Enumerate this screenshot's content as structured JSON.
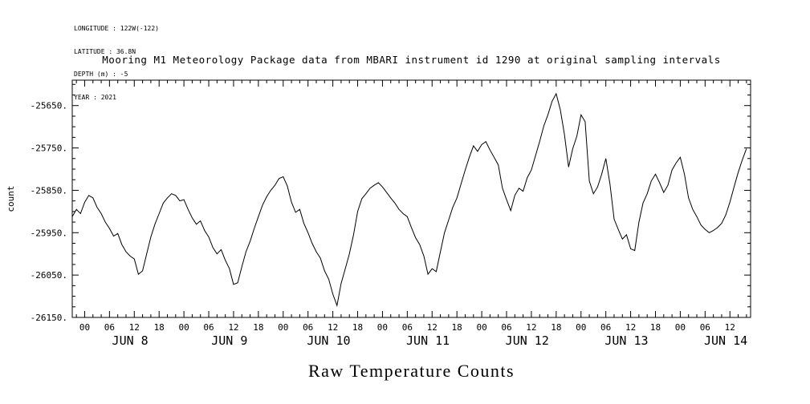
{
  "meta": {
    "lines": [
      "LONGITUDE : 122W(-122)",
      "LATITUDE : 36.8N",
      "DEPTH (m) : -5",
      "YEAR : 2021"
    ]
  },
  "title": "Mooring M1 Meteorology Package data from MBARI instrument id 1290 at original sampling intervals",
  "bottom_title": "Raw Temperature Counts",
  "chart_data": {
    "type": "line",
    "title": "Mooring M1 Meteorology Package data from MBARI instrument id 1290 at original sampling intervals",
    "caption": "Raw Temperature Counts",
    "xlabel": "",
    "ylabel": "count",
    "grid": false,
    "legend": "none",
    "line_color": "#000000",
    "ylim": [
      -26150,
      -25590
    ],
    "xlim_hours": [
      -3,
      161
    ],
    "x_major_tick_every_hours": 6,
    "x_minor_tick_every_hours": 2,
    "y_major_tick_every": 100,
    "y_minor_tick_every": 25,
    "x_major_tick_labels_cycle": [
      "00",
      "06",
      "12",
      "18"
    ],
    "y_ticks": [
      {
        "value": -26150,
        "label": "-26150."
      },
      {
        "value": -26050,
        "label": "-26050."
      },
      {
        "value": -25950,
        "label": "-25950."
      },
      {
        "value": -25850,
        "label": "-25850."
      },
      {
        "value": -25750,
        "label": "-25750."
      },
      {
        "value": -25650,
        "label": "-25650."
      }
    ],
    "day_labels": [
      {
        "label": "JUN 8",
        "hour": 11
      },
      {
        "label": "JUN 9",
        "hour": 35
      },
      {
        "label": "JUN 10",
        "hour": 59
      },
      {
        "label": "JUN 11",
        "hour": 83
      },
      {
        "label": "JUN 12",
        "hour": 107
      },
      {
        "label": "JUN 13",
        "hour": 131
      },
      {
        "label": "JUN 14",
        "hour": 155
      }
    ],
    "series": [
      {
        "name": "raw temperature counts",
        "x_hours": [
          -3,
          -2,
          -1,
          0,
          1,
          2,
          3,
          4,
          5,
          6,
          7,
          8,
          9,
          10,
          11,
          12,
          13,
          14,
          15,
          16,
          17,
          18,
          19,
          20,
          21,
          22,
          23,
          24,
          25,
          26,
          27,
          28,
          29,
          30,
          31,
          32,
          33,
          34,
          35,
          36,
          37,
          38,
          39,
          40,
          41,
          42,
          43,
          44,
          45,
          46,
          47,
          48,
          49,
          50,
          51,
          52,
          53,
          54,
          55,
          56,
          57,
          58,
          59,
          60,
          61,
          62,
          63,
          64,
          65,
          66,
          67,
          68,
          69,
          70,
          71,
          72,
          73,
          74,
          75,
          76,
          77,
          78,
          79,
          80,
          81,
          82,
          83,
          84,
          85,
          86,
          87,
          88,
          89,
          90,
          91,
          92,
          93,
          94,
          95,
          96,
          97,
          98,
          99,
          100,
          101,
          102,
          103,
          104,
          105,
          106,
          107,
          108,
          109,
          110,
          111,
          112,
          113,
          114,
          115,
          116,
          117,
          118,
          119,
          120,
          121,
          122,
          123,
          124,
          125,
          126,
          127,
          128,
          129,
          130,
          131,
          132,
          133,
          134,
          135,
          136,
          137,
          138,
          139,
          140,
          141,
          142,
          143,
          144,
          145,
          146,
          147,
          148,
          149,
          150,
          151,
          152,
          153,
          154,
          155,
          156,
          157,
          158,
          159,
          160
        ],
        "values": [
          -25912,
          -25895,
          -25905,
          -25878,
          -25862,
          -25868,
          -25890,
          -25905,
          -25925,
          -25940,
          -25958,
          -25952,
          -25978,
          -25995,
          -26005,
          -26012,
          -26048,
          -26040,
          -26000,
          -25960,
          -25930,
          -25905,
          -25880,
          -25868,
          -25858,
          -25862,
          -25875,
          -25872,
          -25895,
          -25915,
          -25930,
          -25922,
          -25945,
          -25960,
          -25985,
          -26000,
          -25990,
          -26015,
          -26035,
          -26072,
          -26068,
          -26030,
          -25995,
          -25970,
          -25940,
          -25912,
          -25885,
          -25865,
          -25850,
          -25838,
          -25822,
          -25818,
          -25840,
          -25878,
          -25902,
          -25895,
          -25928,
          -25950,
          -25975,
          -25995,
          -26010,
          -26040,
          -26060,
          -26095,
          -26122,
          -26070,
          -26035,
          -26000,
          -25955,
          -25900,
          -25870,
          -25858,
          -25845,
          -25838,
          -25832,
          -25842,
          -25855,
          -25868,
          -25880,
          -25895,
          -25905,
          -25912,
          -25938,
          -25962,
          -25978,
          -26005,
          -26048,
          -26035,
          -26042,
          -25995,
          -25950,
          -25920,
          -25890,
          -25868,
          -25835,
          -25802,
          -25772,
          -25745,
          -25758,
          -25742,
          -25735,
          -25755,
          -25772,
          -25790,
          -25845,
          -25872,
          -25898,
          -25862,
          -25845,
          -25852,
          -25820,
          -25802,
          -25768,
          -25735,
          -25698,
          -25672,
          -25640,
          -25622,
          -25660,
          -25718,
          -25795,
          -25752,
          -25722,
          -25672,
          -25688,
          -25828,
          -25858,
          -25842,
          -25812,
          -25775,
          -25835,
          -25918,
          -25942,
          -25965,
          -25955,
          -25988,
          -25992,
          -25925,
          -25880,
          -25858,
          -25828,
          -25812,
          -25832,
          -25855,
          -25838,
          -25802,
          -25785,
          -25772,
          -25812,
          -25868,
          -25895,
          -25912,
          -25932,
          -25942,
          -25950,
          -25945,
          -25938,
          -25928,
          -25908,
          -25878,
          -25842,
          -25808,
          -25778,
          -25752
        ]
      }
    ]
  }
}
